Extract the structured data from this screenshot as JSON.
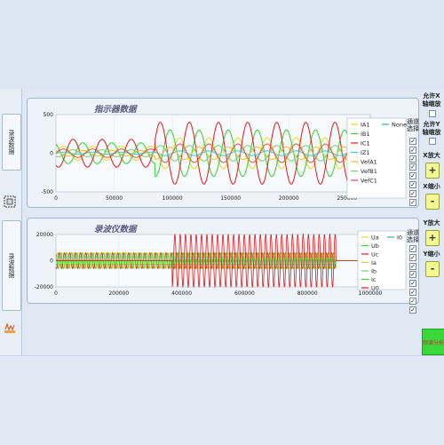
{
  "left_tabs": [
    {
      "label": "录波数据"
    },
    {
      "label": "录波数据"
    }
  ],
  "chart_data": [
    {
      "type": "line",
      "title": "指示器数据",
      "xlim": [
        0,
        270000
      ],
      "ylim": [
        -500,
        500
      ],
      "x_ticks": [
        0,
        50000,
        100000,
        150000,
        200000,
        250000
      ],
      "y_ticks": [
        500,
        0,
        -500
      ],
      "legend_position": "right",
      "series": [
        {
          "name": "IA1",
          "color": "#e6d81a",
          "amplitude": 200
        },
        {
          "name": "IB1",
          "color": "#2fd32f",
          "amplitude": 300
        },
        {
          "name": "IC1",
          "color": "#e01818",
          "amplitude": 400
        },
        {
          "name": "IZ1",
          "color": "#39c6e6",
          "amplitude": 30
        },
        {
          "name": "VefA1",
          "color": "#d8c830",
          "amplitude": 80
        },
        {
          "name": "VefB1",
          "color": "#70d070",
          "amplitude": 100
        },
        {
          "name": "VefC1",
          "color": "#e05050",
          "amplitude": 120
        },
        {
          "name": "None",
          "color": "#2ab9a0",
          "amplitude": 0
        }
      ],
      "legend_header": "通道选择"
    },
    {
      "type": "line",
      "title": "录波仪数据",
      "xlim": [
        0,
        1000000
      ],
      "ylim": [
        -20000,
        20000
      ],
      "x_ticks": [
        0,
        200000,
        400000,
        600000,
        800000,
        1000000
      ],
      "y_ticks": [
        20000,
        0,
        -20000
      ],
      "legend_position": "right",
      "series": [
        {
          "name": "Ua",
          "color": "#e6d81a"
        },
        {
          "name": "Ub",
          "color": "#2fd32f"
        },
        {
          "name": "Uc",
          "color": "#e01818"
        },
        {
          "name": "Ia",
          "color": "#d8c830"
        },
        {
          "name": "Ib",
          "color": "#70d070"
        },
        {
          "name": "Ic",
          "color": "#2fd32f"
        },
        {
          "name": "U0",
          "color": "#e01818"
        },
        {
          "name": "I0",
          "color": "#2ab9a0"
        }
      ],
      "legend_header": "通道选择"
    }
  ],
  "right_panel": {
    "allow_x_zoom": "允许X轴缩放",
    "allow_y_zoom": "允许Y轴缩放",
    "x_zoom_in": "X放大",
    "x_zoom_out": "X缩小",
    "y_zoom_in": "Y放大",
    "y_zoom_out": "Y缩小",
    "plus": "+",
    "minus": "-",
    "analyze_button": "频谱分析"
  }
}
